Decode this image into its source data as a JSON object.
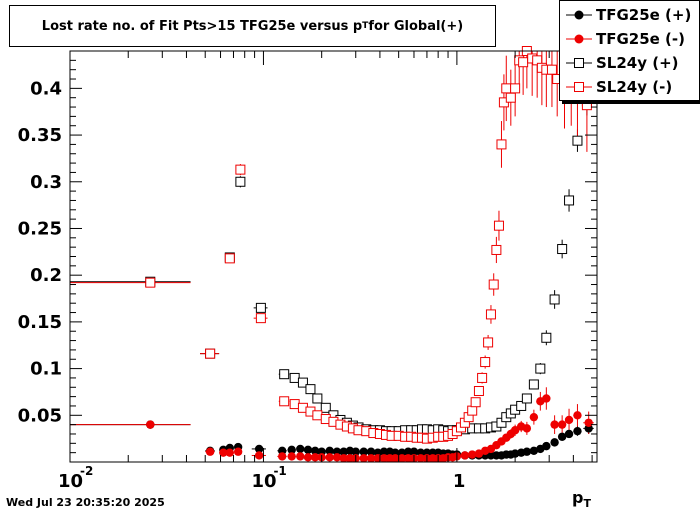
{
  "title": "Lost rate no. of Fit Pts>15 TFG25e versus p",
  "title_sub": "T",
  "title_suffix": " for Global(+)",
  "timestamp": "Wed Jul 23 20:35:20 2025",
  "colors": {
    "black": "#000000",
    "red": "#ee0000"
  },
  "chart_data": {
    "type": "scatter",
    "xlabel": "p",
    "xlabel_sub": "T",
    "xscale": "log",
    "xlim": [
      0.01,
      5.3
    ],
    "ylim": [
      0.0,
      0.44
    ],
    "x_tick_labels": [
      "10",
      "10",
      "1"
    ],
    "x_tick_exponents": [
      "-2",
      "-1",
      ""
    ],
    "y_ticks": [
      0.05,
      0.1,
      0.15,
      0.2,
      0.25,
      0.3,
      0.35,
      0.4
    ],
    "y_tick_labels": [
      "0.05",
      "0.1",
      "0.15",
      "0.2",
      "0.25",
      "0.3",
      "0.35",
      "0.4"
    ],
    "legend_position": "top-right",
    "series": [
      {
        "name": "TFG25e (+)",
        "marker": "filled-circle",
        "color": "#000000",
        "x": [
          0.026,
          0.053,
          0.062,
          0.067,
          0.074,
          0.095,
          0.125,
          0.14,
          0.155,
          0.17,
          0.185,
          0.2,
          0.22,
          0.24,
          0.26,
          0.28,
          0.3,
          0.33,
          0.36,
          0.39,
          0.42,
          0.45,
          0.48,
          0.52,
          0.56,
          0.6,
          0.65,
          0.7,
          0.75,
          0.8,
          0.85,
          0.9,
          0.95,
          1.0,
          1.1,
          1.2,
          1.3,
          1.4,
          1.5,
          1.6,
          1.7,
          1.8,
          1.9,
          2.0,
          2.15,
          2.3,
          2.5,
          2.7,
          2.9,
          3.2,
          3.5,
          3.8,
          4.2,
          4.8
        ],
        "y": [
          0.04,
          0.012,
          0.013,
          0.015,
          0.016,
          0.014,
          0.012,
          0.013,
          0.014,
          0.013,
          0.012,
          0.011,
          0.012,
          0.011,
          0.011,
          0.012,
          0.011,
          0.011,
          0.011,
          0.01,
          0.011,
          0.011,
          0.01,
          0.01,
          0.011,
          0.011,
          0.01,
          0.01,
          0.01,
          0.01,
          0.009,
          0.009,
          0.008,
          0.008,
          0.007,
          0.007,
          0.007,
          0.007,
          0.007,
          0.007,
          0.007,
          0.008,
          0.008,
          0.009,
          0.01,
          0.011,
          0.012,
          0.014,
          0.017,
          0.021,
          0.027,
          0.03,
          0.033,
          0.036
        ],
        "xerr": [
          0.016,
          0.003,
          0.002,
          0.002,
          0.003,
          0.008,
          0.007,
          0.007,
          0.007,
          0.008,
          0.008,
          0.01,
          0.01,
          0.01,
          0.01,
          0.01,
          0.01,
          0.015,
          0.015,
          0.015,
          0.015,
          0.015,
          0.015,
          0.02,
          0.02,
          0.02,
          0.025,
          0.025,
          0.025,
          0.025,
          0.025,
          0.025,
          0.025,
          0.025,
          0.05,
          0.05,
          0.05,
          0.05,
          0.05,
          0.05,
          0.05,
          0.05,
          0.05,
          0.05,
          0.07,
          0.07,
          0.1,
          0.1,
          0.1,
          0.15,
          0.15,
          0.15,
          0.2,
          0.3
        ],
        "yerr": [
          0.001,
          0.001,
          0.002,
          0.002,
          0.002,
          0.002,
          0.001,
          0.001,
          0.001,
          0.001,
          0.001,
          0.001,
          0.001,
          0.001,
          0.001,
          0.001,
          0.001,
          0.001,
          0.001,
          0.001,
          0.001,
          0.001,
          0.001,
          0.001,
          0.001,
          0.001,
          0.001,
          0.001,
          0.001,
          0.001,
          0.001,
          0.001,
          0.001,
          0.001,
          0.001,
          0.001,
          0.001,
          0.001,
          0.001,
          0.001,
          0.001,
          0.001,
          0.001,
          0.001,
          0.001,
          0.001,
          0.002,
          0.002,
          0.002,
          0.003,
          0.004,
          0.004,
          0.005,
          0.006
        ]
      },
      {
        "name": "TFG25e (-)",
        "marker": "filled-circle",
        "color": "#ee0000",
        "x": [
          0.026,
          0.053,
          0.062,
          0.067,
          0.074,
          0.095,
          0.125,
          0.14,
          0.155,
          0.17,
          0.185,
          0.2,
          0.22,
          0.24,
          0.26,
          0.28,
          0.3,
          0.33,
          0.36,
          0.39,
          0.42,
          0.45,
          0.48,
          0.52,
          0.56,
          0.6,
          0.65,
          0.7,
          0.75,
          0.8,
          0.85,
          0.9,
          0.95,
          1.0,
          1.1,
          1.2,
          1.3,
          1.4,
          1.5,
          1.6,
          1.7,
          1.8,
          1.9,
          2.0,
          2.15,
          2.3,
          2.5,
          2.7,
          2.9,
          3.2,
          3.5,
          3.8,
          4.2,
          4.8
        ],
        "y": [
          0.04,
          0.011,
          0.01,
          0.01,
          0.011,
          0.007,
          0.006,
          0.006,
          0.006,
          0.005,
          0.005,
          0.005,
          0.005,
          0.005,
          0.004,
          0.004,
          0.004,
          0.004,
          0.004,
          0.004,
          0.004,
          0.004,
          0.004,
          0.004,
          0.004,
          0.004,
          0.004,
          0.004,
          0.004,
          0.004,
          0.004,
          0.005,
          0.005,
          0.006,
          0.007,
          0.008,
          0.009,
          0.012,
          0.014,
          0.018,
          0.022,
          0.026,
          0.03,
          0.034,
          0.038,
          0.036,
          0.048,
          0.065,
          0.068,
          0.04,
          0.04,
          0.045,
          0.05,
          0.042
        ],
        "xerr": [
          0.016,
          0.003,
          0.002,
          0.002,
          0.003,
          0.008,
          0.007,
          0.007,
          0.007,
          0.008,
          0.008,
          0.01,
          0.01,
          0.01,
          0.01,
          0.01,
          0.01,
          0.015,
          0.015,
          0.015,
          0.015,
          0.015,
          0.015,
          0.02,
          0.02,
          0.02,
          0.025,
          0.025,
          0.025,
          0.025,
          0.025,
          0.025,
          0.025,
          0.025,
          0.05,
          0.05,
          0.05,
          0.05,
          0.05,
          0.05,
          0.05,
          0.05,
          0.05,
          0.05,
          0.07,
          0.07,
          0.1,
          0.1,
          0.1,
          0.15,
          0.15,
          0.15,
          0.2,
          0.3
        ],
        "yerr": [
          0.001,
          0.001,
          0.002,
          0.002,
          0.002,
          0.002,
          0.001,
          0.001,
          0.001,
          0.001,
          0.001,
          0.001,
          0.001,
          0.001,
          0.001,
          0.001,
          0.001,
          0.001,
          0.001,
          0.001,
          0.001,
          0.001,
          0.001,
          0.001,
          0.001,
          0.001,
          0.001,
          0.001,
          0.001,
          0.001,
          0.001,
          0.001,
          0.001,
          0.001,
          0.001,
          0.002,
          0.002,
          0.002,
          0.003,
          0.003,
          0.004,
          0.004,
          0.005,
          0.006,
          0.006,
          0.007,
          0.008,
          0.01,
          0.012,
          0.01,
          0.01,
          0.012,
          0.012,
          0.012
        ]
      },
      {
        "name": "SL24y (+)",
        "marker": "open-square",
        "color": "#000000",
        "x": [
          0.026,
          0.053,
          0.067,
          0.076,
          0.097,
          0.128,
          0.145,
          0.16,
          0.175,
          0.19,
          0.21,
          0.23,
          0.25,
          0.27,
          0.29,
          0.31,
          0.34,
          0.37,
          0.4,
          0.43,
          0.46,
          0.5,
          0.54,
          0.58,
          0.62,
          0.66,
          0.7,
          0.75,
          0.8,
          0.85,
          0.9,
          0.95,
          1.0,
          1.1,
          1.2,
          1.3,
          1.4,
          1.5,
          1.6,
          1.7,
          1.8,
          1.9,
          2.0,
          2.15,
          2.3,
          2.5,
          2.7,
          2.9,
          3.2,
          3.5,
          3.8,
          4.2,
          4.7
        ],
        "y": [
          0.193,
          0.116,
          0.219,
          0.3,
          0.165,
          0.094,
          0.09,
          0.085,
          0.078,
          0.068,
          0.058,
          0.05,
          0.045,
          0.042,
          0.039,
          0.037,
          0.035,
          0.034,
          0.034,
          0.033,
          0.033,
          0.033,
          0.034,
          0.034,
          0.034,
          0.035,
          0.035,
          0.034,
          0.035,
          0.034,
          0.033,
          0.034,
          0.034,
          0.035,
          0.036,
          0.036,
          0.036,
          0.037,
          0.038,
          0.042,
          0.048,
          0.052,
          0.056,
          0.06,
          0.068,
          0.083,
          0.1,
          0.133,
          0.174,
          0.228,
          0.28,
          0.344,
          0.386
        ],
        "xerr": [
          0.016,
          0.006,
          0.002,
          0.003,
          0.008,
          0.008,
          0.008,
          0.008,
          0.008,
          0.008,
          0.01,
          0.01,
          0.01,
          0.01,
          0.01,
          0.01,
          0.015,
          0.015,
          0.015,
          0.015,
          0.015,
          0.02,
          0.02,
          0.02,
          0.02,
          0.02,
          0.02,
          0.025,
          0.025,
          0.025,
          0.025,
          0.025,
          0.025,
          0.05,
          0.05,
          0.05,
          0.05,
          0.05,
          0.05,
          0.05,
          0.05,
          0.05,
          0.05,
          0.07,
          0.07,
          0.1,
          0.1,
          0.1,
          0.15,
          0.15,
          0.15,
          0.2,
          0.3
        ],
        "yerr": [
          0.002,
          0.003,
          0.005,
          0.006,
          0.004,
          0.002,
          0.002,
          0.002,
          0.002,
          0.002,
          0.002,
          0.001,
          0.001,
          0.001,
          0.001,
          0.001,
          0.001,
          0.001,
          0.001,
          0.001,
          0.001,
          0.001,
          0.001,
          0.001,
          0.001,
          0.001,
          0.001,
          0.001,
          0.001,
          0.001,
          0.001,
          0.001,
          0.001,
          0.001,
          0.001,
          0.001,
          0.002,
          0.002,
          0.002,
          0.002,
          0.003,
          0.003,
          0.004,
          0.004,
          0.005,
          0.005,
          0.006,
          0.008,
          0.01,
          0.01,
          0.012,
          0.012,
          0.015
        ]
      },
      {
        "name": "SL24y (-)",
        "marker": "open-square",
        "color": "#ee0000",
        "x": [
          0.026,
          0.053,
          0.067,
          0.076,
          0.097,
          0.128,
          0.145,
          0.16,
          0.175,
          0.19,
          0.21,
          0.23,
          0.25,
          0.27,
          0.29,
          0.31,
          0.34,
          0.37,
          0.4,
          0.43,
          0.46,
          0.5,
          0.54,
          0.58,
          0.62,
          0.66,
          0.7,
          0.75,
          0.8,
          0.85,
          0.9,
          0.95,
          1.0,
          1.05,
          1.1,
          1.15,
          1.2,
          1.25,
          1.3,
          1.35,
          1.4,
          1.45,
          1.5,
          1.55,
          1.6,
          1.65,
          1.7,
          1.75,
          1.8,
          1.9,
          2.0,
          2.1,
          2.2,
          2.3,
          2.45,
          2.6,
          2.75,
          2.9,
          3.1,
          3.3,
          3.6,
          3.9,
          4.2,
          4.7
        ],
        "y": [
          0.192,
          0.116,
          0.218,
          0.313,
          0.154,
          0.065,
          0.062,
          0.058,
          0.054,
          0.05,
          0.046,
          0.043,
          0.04,
          0.038,
          0.036,
          0.034,
          0.033,
          0.031,
          0.03,
          0.029,
          0.028,
          0.028,
          0.027,
          0.027,
          0.026,
          0.026,
          0.025,
          0.026,
          0.027,
          0.027,
          0.028,
          0.03,
          0.033,
          0.037,
          0.042,
          0.048,
          0.055,
          0.064,
          0.076,
          0.09,
          0.107,
          0.128,
          0.158,
          0.19,
          0.227,
          0.253,
          0.34,
          0.385,
          0.4,
          0.39,
          0.4,
          0.43,
          0.428,
          0.44,
          0.432,
          0.43,
          0.422,
          0.42,
          0.42,
          0.41,
          0.402,
          0.405,
          0.39,
          0.382
        ],
        "xerr": [
          0.016,
          0.006,
          0.002,
          0.003,
          0.008,
          0.008,
          0.008,
          0.008,
          0.008,
          0.008,
          0.01,
          0.01,
          0.01,
          0.01,
          0.01,
          0.01,
          0.015,
          0.015,
          0.015,
          0.015,
          0.015,
          0.02,
          0.02,
          0.02,
          0.02,
          0.02,
          0.02,
          0.025,
          0.025,
          0.025,
          0.025,
          0.025,
          0.025,
          0.025,
          0.025,
          0.025,
          0.025,
          0.025,
          0.025,
          0.025,
          0.025,
          0.025,
          0.025,
          0.025,
          0.025,
          0.025,
          0.025,
          0.025,
          0.025,
          0.05,
          0.05,
          0.05,
          0.05,
          0.05,
          0.07,
          0.07,
          0.07,
          0.07,
          0.1,
          0.1,
          0.15,
          0.15,
          0.15,
          0.2
        ],
        "yerr": [
          0.002,
          0.003,
          0.005,
          0.006,
          0.004,
          0.002,
          0.002,
          0.002,
          0.002,
          0.002,
          0.002,
          0.001,
          0.001,
          0.001,
          0.001,
          0.001,
          0.001,
          0.001,
          0.001,
          0.001,
          0.001,
          0.001,
          0.001,
          0.001,
          0.001,
          0.001,
          0.001,
          0.001,
          0.001,
          0.001,
          0.001,
          0.001,
          0.002,
          0.002,
          0.002,
          0.003,
          0.003,
          0.004,
          0.005,
          0.006,
          0.007,
          0.008,
          0.01,
          0.012,
          0.014,
          0.016,
          0.025,
          0.03,
          0.035,
          0.03,
          0.03,
          0.035,
          0.035,
          0.04,
          0.04,
          0.04,
          0.04,
          0.04,
          0.04,
          0.04,
          0.045,
          0.045,
          0.05,
          0.05
        ]
      }
    ]
  }
}
